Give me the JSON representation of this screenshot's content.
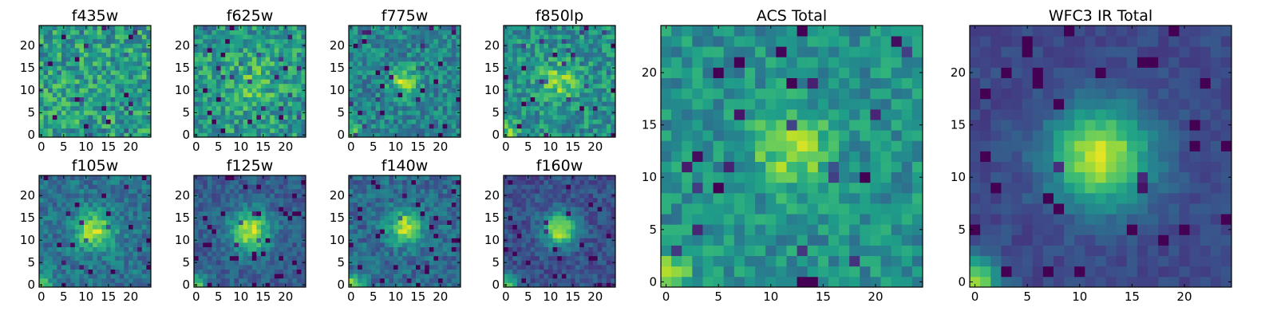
{
  "chart_data": {
    "type": "heatmap",
    "colormap": "viridis",
    "pixels_per_side": 25,
    "panels": [
      {
        "id": "f435w",
        "title": "f435w",
        "xticks": [
          0,
          5,
          10,
          15,
          20
        ],
        "yticks": [
          0,
          5,
          10,
          15,
          20
        ],
        "xlim": [
          -0.5,
          24.5
        ],
        "ylim": [
          -0.5,
          24.5
        ],
        "source": {
          "cx": 12,
          "cy": 11.5,
          "amp": 0.0,
          "sigma": 3.0
        },
        "noise": 0.45,
        "base": 0.55,
        "corner": 0.15,
        "seed": 11
      },
      {
        "id": "f625w",
        "title": "f625w",
        "xticks": [
          0,
          5,
          10,
          15,
          20
        ],
        "yticks": [
          0,
          5,
          10,
          15,
          20
        ],
        "xlim": [
          -0.5,
          24.5
        ],
        "ylim": [
          -0.5,
          24.5
        ],
        "source": {
          "cx": 12,
          "cy": 11.5,
          "amp": 0.15,
          "sigma": 5.0
        },
        "noise": 0.42,
        "base": 0.52,
        "corner": 0.1,
        "seed": 23
      },
      {
        "id": "f775w",
        "title": "f775w",
        "xticks": [
          0,
          5,
          10,
          15,
          20
        ],
        "yticks": [
          0,
          5,
          10,
          15,
          20
        ],
        "xlim": [
          -0.5,
          24.5
        ],
        "ylim": [
          -0.5,
          24.5
        ],
        "source": {
          "cx": 12,
          "cy": 12,
          "amp": 0.4,
          "sigma": 2.2
        },
        "noise": 0.35,
        "base": 0.45,
        "corner": 0.35,
        "seed": 37
      },
      {
        "id": "f850lp",
        "title": "f850lp",
        "xticks": [
          0,
          5,
          10,
          15,
          20
        ],
        "yticks": [
          0,
          5,
          10,
          15,
          20
        ],
        "xlim": [
          -0.5,
          24.5
        ],
        "ylim": [
          -0.5,
          24.5
        ],
        "source": {
          "cx": 12,
          "cy": 12,
          "amp": 0.3,
          "sigma": 2.8
        },
        "noise": 0.38,
        "base": 0.5,
        "corner": 0.3,
        "seed": 41
      },
      {
        "id": "f105w",
        "title": "f105w",
        "xticks": [
          0,
          5,
          10,
          15,
          20
        ],
        "yticks": [
          0,
          5,
          10,
          15,
          20
        ],
        "xlim": [
          -0.5,
          24.5
        ],
        "ylim": [
          -0.5,
          24.5
        ],
        "source": {
          "cx": 12,
          "cy": 12,
          "amp": 0.5,
          "sigma": 3.0
        },
        "noise": 0.28,
        "base": 0.38,
        "corner": 0.45,
        "seed": 53
      },
      {
        "id": "f125w",
        "title": "f125w",
        "xticks": [
          0,
          5,
          10,
          15,
          20
        ],
        "yticks": [
          0,
          5,
          10,
          15,
          20
        ],
        "xlim": [
          -0.5,
          24.5
        ],
        "ylim": [
          -0.5,
          24.5
        ],
        "source": {
          "cx": 12,
          "cy": 12,
          "amp": 0.6,
          "sigma": 3.2
        },
        "noise": 0.22,
        "base": 0.3,
        "corner": 0.5,
        "seed": 67
      },
      {
        "id": "f140w",
        "title": "f140w",
        "xticks": [
          0,
          5,
          10,
          15,
          20
        ],
        "yticks": [
          0,
          5,
          10,
          15,
          20
        ],
        "xlim": [
          -0.5,
          24.5
        ],
        "ylim": [
          -0.5,
          24.5
        ],
        "source": {
          "cx": 12,
          "cy": 13,
          "amp": 0.55,
          "sigma": 2.5
        },
        "noise": 0.28,
        "base": 0.35,
        "corner": 0.5,
        "seed": 71
      },
      {
        "id": "f160w",
        "title": "f160w",
        "xticks": [
          0,
          5,
          10,
          15,
          20
        ],
        "yticks": [
          0,
          5,
          10,
          15,
          20
        ],
        "xlim": [
          -0.5,
          24.5
        ],
        "ylim": [
          -0.5,
          24.5
        ],
        "source": {
          "cx": 12,
          "cy": 12.5,
          "amp": 0.65,
          "sigma": 2.6
        },
        "noise": 0.22,
        "base": 0.25,
        "corner": 0.55,
        "seed": 83
      },
      {
        "id": "acs-total",
        "title": "ACS Total",
        "xticks": [
          0,
          5,
          10,
          15,
          20
        ],
        "yticks": [
          0,
          5,
          10,
          15,
          20
        ],
        "xlim": [
          -0.5,
          24.5
        ],
        "ylim": [
          -0.5,
          24.5
        ],
        "source": {
          "cx": 12,
          "cy": 12.5,
          "amp": 0.35,
          "sigma": 2.5
        },
        "noise": 0.3,
        "base": 0.5,
        "corner": 0.35,
        "seed": 97
      },
      {
        "id": "wfc3-ir-total",
        "title": "WFC3 IR Total",
        "xticks": [
          0,
          5,
          10,
          15,
          20
        ],
        "yticks": [
          0,
          5,
          10,
          15,
          20
        ],
        "xlim": [
          -0.5,
          24.5
        ],
        "ylim": [
          -0.5,
          24.5
        ],
        "source": {
          "cx": 12,
          "cy": 12,
          "amp": 0.7,
          "sigma": 3.4
        },
        "noise": 0.12,
        "base": 0.22,
        "corner": 0.65,
        "seed": 109
      }
    ]
  }
}
